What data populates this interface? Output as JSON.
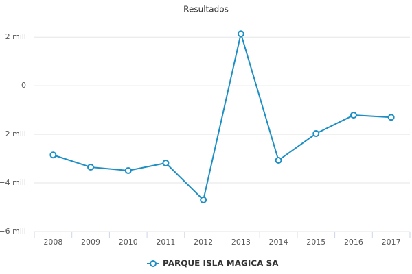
{
  "chart_data": {
    "type": "line",
    "title": "Resultados",
    "categories": [
      "2008",
      "2009",
      "2010",
      "2011",
      "2012",
      "2013",
      "2014",
      "2015",
      "2016",
      "2017"
    ],
    "series": [
      {
        "name": "PARQUE ISLA MAGICA SA",
        "color": "#1d8fc4",
        "values": [
          -2.85,
          -3.35,
          -3.49,
          -3.18,
          -4.7,
          2.14,
          -3.07,
          -1.97,
          -1.21,
          -1.3
        ]
      }
    ],
    "ylim": [
      -6,
      2.4
    ],
    "yticks": [
      {
        "value": -6,
        "label": "−6 mill"
      },
      {
        "value": -4,
        "label": "−4 mill"
      },
      {
        "value": -2,
        "label": "−2 mill"
      },
      0,
      {
        "value": 2,
        "label": "2 mill"
      }
    ],
    "grid": true,
    "legend": "bottom"
  }
}
